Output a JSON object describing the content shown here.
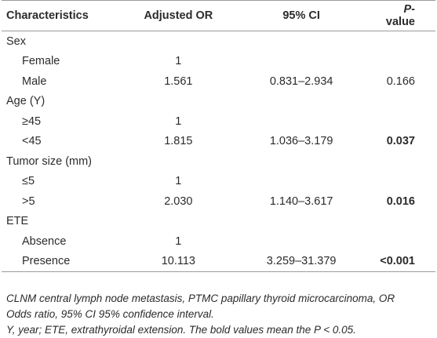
{
  "table": {
    "headers": [
      "Characteristics",
      "Adjusted OR",
      "95% CI",
      [
        "P",
        "-value"
      ]
    ],
    "groups": [
      {
        "name": "Sex",
        "rows": [
          {
            "label": "Female",
            "or": "1"
          },
          {
            "label": "Male",
            "or": "1.561",
            "ci": "0.831–2.934",
            "p": "0.166",
            "bold": false
          }
        ]
      },
      {
        "name": "Age (Y)",
        "rows": [
          {
            "label": "≥45",
            "or": "1"
          },
          {
            "label": "<45",
            "or": "1.815",
            "ci": "1.036–3.179",
            "p": "0.037",
            "bold": true
          }
        ]
      },
      {
        "name": "Tumor size (mm)",
        "rows": [
          {
            "label": "≤5",
            "or": "1"
          },
          {
            "label": ">5",
            "or": "2.030",
            "ci": "1.140–3.617",
            "p": "0.016",
            "bold": true
          }
        ]
      },
      {
        "name": "ETE",
        "rows": [
          {
            "label": "Absence",
            "or": "1"
          },
          {
            "label": "Presence",
            "or": "10.113",
            "ci": "3.259–31.379",
            "p": "<0.001",
            "bold": true
          }
        ]
      }
    ]
  },
  "footnotes": [
    "CLNM central lymph node metastasis, PTMC papillary thyroid microcarcinoma, OR Odds ratio, 95% CI 95% confidence interval.",
    "Y, year; ETE, extrathyroidal extension. The bold values mean the P < 0.05."
  ]
}
